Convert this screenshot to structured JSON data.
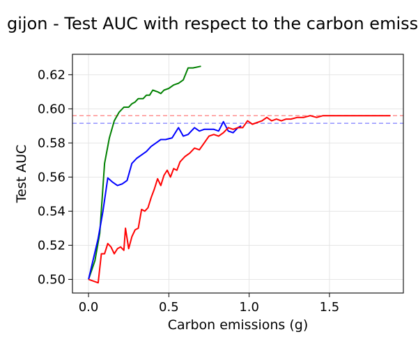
{
  "chart_data": {
    "type": "line",
    "title": "gijon - Test AUC with respect to the carbon emissions",
    "xlabel": "Carbon emissions (g)",
    "ylabel": "Test AUC",
    "xlim": [
      -0.1,
      1.96
    ],
    "ylim": [
      0.492,
      0.632
    ],
    "x_ticks": [
      0.0,
      0.5,
      1.0,
      1.5
    ],
    "x_tick_labels": [
      "0.0",
      "0.5",
      "1.0",
      "1.5"
    ],
    "y_ticks": [
      0.5,
      0.52,
      0.54,
      0.56,
      0.58,
      0.6,
      0.62
    ],
    "y_tick_labels": [
      "0.50",
      "0.52",
      "0.54",
      "0.56",
      "0.58",
      "0.60",
      "0.62"
    ],
    "grid": true,
    "hlines": [
      {
        "y": 0.596,
        "color": "#ff9999",
        "style": "dashed"
      },
      {
        "y": 0.5915,
        "color": "#9999ff",
        "style": "dashed"
      }
    ],
    "series": [
      {
        "color": "#008000",
        "points": [
          [
            0.0,
            0.5
          ],
          [
            0.04,
            0.511
          ],
          [
            0.07,
            0.527
          ],
          [
            0.1,
            0.568
          ],
          [
            0.13,
            0.583
          ],
          [
            0.16,
            0.593
          ],
          [
            0.19,
            0.598
          ],
          [
            0.22,
            0.601
          ],
          [
            0.25,
            0.601
          ],
          [
            0.27,
            0.603
          ],
          [
            0.29,
            0.604
          ],
          [
            0.31,
            0.606
          ],
          [
            0.34,
            0.606
          ],
          [
            0.36,
            0.608
          ],
          [
            0.38,
            0.608
          ],
          [
            0.4,
            0.611
          ],
          [
            0.43,
            0.61
          ],
          [
            0.45,
            0.609
          ],
          [
            0.47,
            0.611
          ],
          [
            0.5,
            0.612
          ],
          [
            0.53,
            0.614
          ],
          [
            0.56,
            0.615
          ],
          [
            0.59,
            0.617
          ],
          [
            0.62,
            0.624
          ],
          [
            0.65,
            0.624
          ],
          [
            0.7,
            0.625
          ]
        ]
      },
      {
        "color": "#0000ff",
        "points": [
          [
            0.0,
            0.5
          ],
          [
            0.06,
            0.524
          ],
          [
            0.09,
            0.54
          ],
          [
            0.12,
            0.5595
          ],
          [
            0.15,
            0.557
          ],
          [
            0.18,
            0.555
          ],
          [
            0.21,
            0.556
          ],
          [
            0.24,
            0.558
          ],
          [
            0.27,
            0.568
          ],
          [
            0.3,
            0.571
          ],
          [
            0.33,
            0.573
          ],
          [
            0.36,
            0.575
          ],
          [
            0.39,
            0.578
          ],
          [
            0.42,
            0.58
          ],
          [
            0.45,
            0.582
          ],
          [
            0.48,
            0.582
          ],
          [
            0.52,
            0.583
          ],
          [
            0.56,
            0.589
          ],
          [
            0.59,
            0.584
          ],
          [
            0.62,
            0.585
          ],
          [
            0.66,
            0.589
          ],
          [
            0.69,
            0.587
          ],
          [
            0.72,
            0.588
          ],
          [
            0.75,
            0.588
          ],
          [
            0.78,
            0.588
          ],
          [
            0.81,
            0.587
          ],
          [
            0.84,
            0.5925
          ],
          [
            0.87,
            0.587
          ],
          [
            0.9,
            0.586
          ],
          [
            0.93,
            0.589
          ],
          [
            0.95,
            0.59
          ]
        ]
      },
      {
        "color": "#ff0000",
        "points": [
          [
            0.0,
            0.5
          ],
          [
            0.06,
            0.498
          ],
          [
            0.08,
            0.515
          ],
          [
            0.1,
            0.515
          ],
          [
            0.12,
            0.521
          ],
          [
            0.14,
            0.519
          ],
          [
            0.16,
            0.515
          ],
          [
            0.18,
            0.518
          ],
          [
            0.2,
            0.519
          ],
          [
            0.22,
            0.517
          ],
          [
            0.23,
            0.53
          ],
          [
            0.25,
            0.518
          ],
          [
            0.27,
            0.525
          ],
          [
            0.29,
            0.529
          ],
          [
            0.31,
            0.53
          ],
          [
            0.33,
            0.541
          ],
          [
            0.35,
            0.54
          ],
          [
            0.37,
            0.542
          ],
          [
            0.39,
            0.548
          ],
          [
            0.41,
            0.553
          ],
          [
            0.43,
            0.559
          ],
          [
            0.45,
            0.555
          ],
          [
            0.47,
            0.561
          ],
          [
            0.49,
            0.564
          ],
          [
            0.51,
            0.56
          ],
          [
            0.53,
            0.565
          ],
          [
            0.55,
            0.564
          ],
          [
            0.57,
            0.569
          ],
          [
            0.6,
            0.572
          ],
          [
            0.63,
            0.574
          ],
          [
            0.66,
            0.577
          ],
          [
            0.69,
            0.576
          ],
          [
            0.72,
            0.58
          ],
          [
            0.75,
            0.584
          ],
          [
            0.78,
            0.585
          ],
          [
            0.81,
            0.584
          ],
          [
            0.84,
            0.586
          ],
          [
            0.87,
            0.589
          ],
          [
            0.9,
            0.588
          ],
          [
            0.93,
            0.589
          ],
          [
            0.96,
            0.589
          ],
          [
            0.99,
            0.593
          ],
          [
            1.02,
            0.591
          ],
          [
            1.05,
            0.592
          ],
          [
            1.08,
            0.593
          ],
          [
            1.11,
            0.595
          ],
          [
            1.14,
            0.593
          ],
          [
            1.17,
            0.594
          ],
          [
            1.2,
            0.593
          ],
          [
            1.23,
            0.594
          ],
          [
            1.26,
            0.594
          ],
          [
            1.3,
            0.595
          ],
          [
            1.34,
            0.595
          ],
          [
            1.38,
            0.596
          ],
          [
            1.42,
            0.595
          ],
          [
            1.46,
            0.596
          ],
          [
            1.5,
            0.596
          ],
          [
            1.54,
            0.596
          ],
          [
            1.58,
            0.596
          ],
          [
            1.62,
            0.596
          ],
          [
            1.66,
            0.596
          ],
          [
            1.7,
            0.596
          ],
          [
            1.74,
            0.596
          ],
          [
            1.78,
            0.596
          ],
          [
            1.82,
            0.596
          ],
          [
            1.88,
            0.596
          ]
        ]
      }
    ]
  }
}
